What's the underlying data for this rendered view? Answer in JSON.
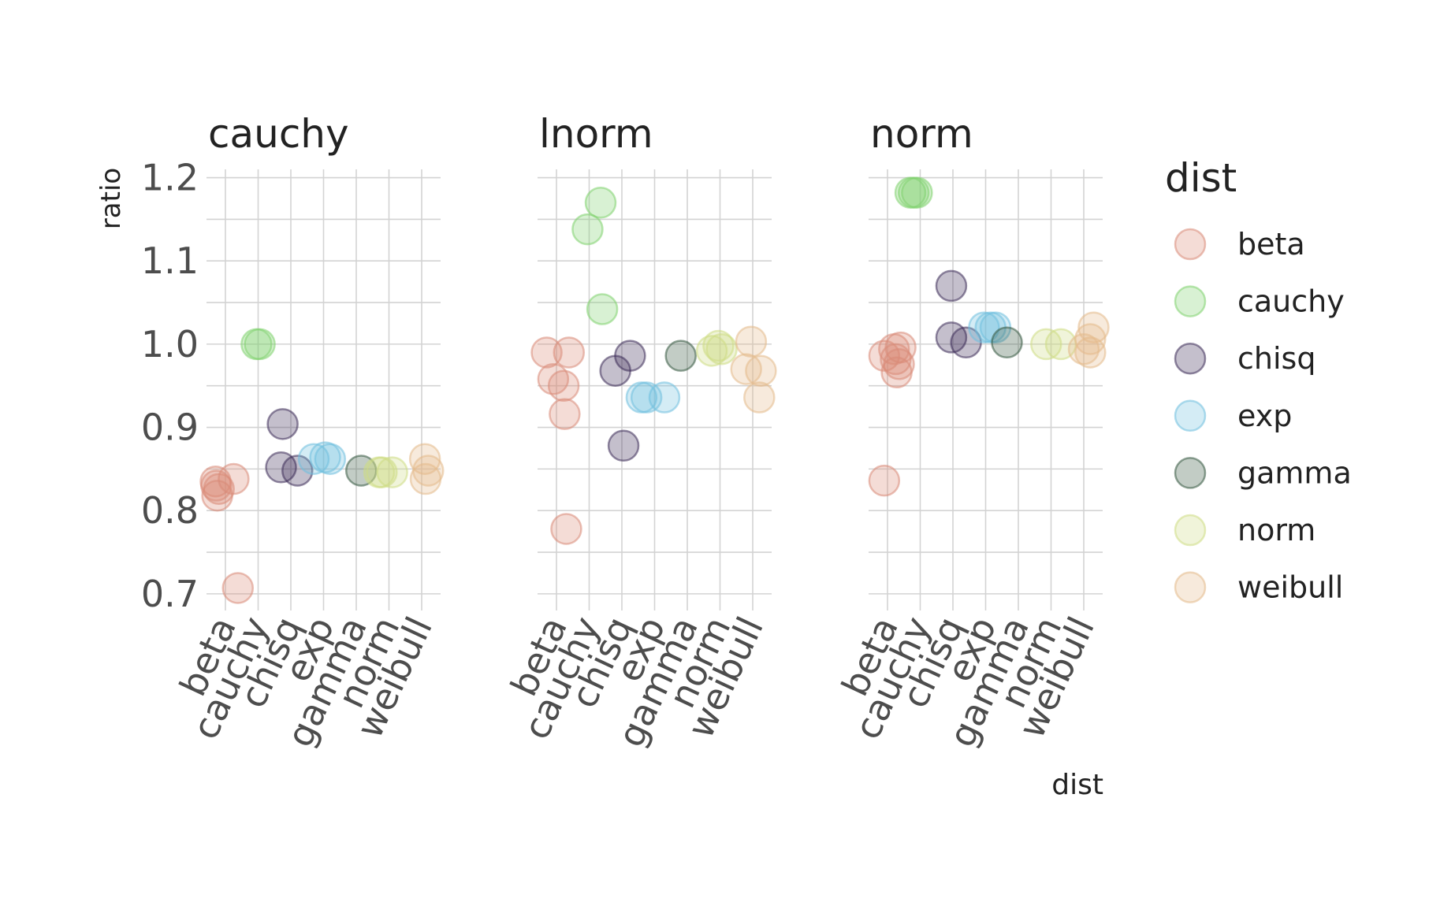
{
  "chart_data": {
    "type": "scatter",
    "ylabel": "ratio",
    "xlabel": "dist",
    "ylim": [
      0.68,
      1.21
    ],
    "y_ticks": [
      "1.2",
      "1.1",
      "1.0",
      "0.9",
      "0.8",
      "0.7"
    ],
    "y_tick_values": [
      1.2,
      1.1,
      1.0,
      0.9,
      0.8,
      0.7
    ],
    "categories": [
      "beta",
      "cauchy",
      "chisq",
      "exp",
      "gamma",
      "norm",
      "weibull"
    ],
    "grid": true,
    "legend": {
      "title": "dist",
      "placement": "right",
      "entries": [
        "beta",
        "cauchy",
        "chisq",
        "exp",
        "gamma",
        "norm",
        "weibull"
      ]
    },
    "colors": {
      "beta": "#d98a78",
      "cauchy": "#7fd16e",
      "chisq": "#3d2b57",
      "exp": "#6fc0df",
      "gamma": "#35573f",
      "norm": "#cedc84",
      "weibull": "#e3b98a"
    },
    "panels": [
      {
        "title": "cauchy",
        "points": [
          {
            "dist": "beta",
            "x": -0.3,
            "y": 0.835
          },
          {
            "dist": "beta",
            "x": -0.2,
            "y": 0.826
          },
          {
            "dist": "beta",
            "x": -0.25,
            "y": 0.818
          },
          {
            "dist": "beta",
            "x": -0.28,
            "y": 0.83
          },
          {
            "dist": "beta",
            "x": 0.25,
            "y": 0.838
          },
          {
            "dist": "beta",
            "x": 0.38,
            "y": 0.707
          },
          {
            "dist": "cauchy",
            "x": 0.95,
            "y": 1.0
          },
          {
            "dist": "cauchy",
            "x": 1.05,
            "y": 1.0
          },
          {
            "dist": "chisq",
            "x": 1.75,
            "y": 0.904
          },
          {
            "dist": "chisq",
            "x": 1.7,
            "y": 0.852
          },
          {
            "dist": "chisq",
            "x": 2.2,
            "y": 0.848
          },
          {
            "dist": "exp",
            "x": 2.7,
            "y": 0.862
          },
          {
            "dist": "exp",
            "x": 3.05,
            "y": 0.864
          },
          {
            "dist": "exp",
            "x": 3.2,
            "y": 0.862
          },
          {
            "dist": "gamma",
            "x": 4.15,
            "y": 0.848
          },
          {
            "dist": "norm",
            "x": 4.7,
            "y": 0.846
          },
          {
            "dist": "norm",
            "x": 4.78,
            "y": 0.846
          },
          {
            "dist": "norm",
            "x": 5.1,
            "y": 0.846
          },
          {
            "dist": "weibull",
            "x": 6.1,
            "y": 0.862
          },
          {
            "dist": "weibull",
            "x": 6.2,
            "y": 0.848
          },
          {
            "dist": "weibull",
            "x": 6.12,
            "y": 0.838
          }
        ]
      },
      {
        "title": "lnorm",
        "points": [
          {
            "dist": "beta",
            "x": -0.3,
            "y": 0.99
          },
          {
            "dist": "beta",
            "x": 0.38,
            "y": 0.99
          },
          {
            "dist": "beta",
            "x": -0.1,
            "y": 0.958
          },
          {
            "dist": "beta",
            "x": 0.22,
            "y": 0.95
          },
          {
            "dist": "beta",
            "x": 0.25,
            "y": 0.916
          },
          {
            "dist": "beta",
            "x": 0.3,
            "y": 0.778
          },
          {
            "dist": "cauchy",
            "x": 1.35,
            "y": 1.17
          },
          {
            "dist": "cauchy",
            "x": 0.95,
            "y": 1.138
          },
          {
            "dist": "cauchy",
            "x": 1.4,
            "y": 1.042
          },
          {
            "dist": "chisq",
            "x": 2.25,
            "y": 0.986
          },
          {
            "dist": "chisq",
            "x": 1.8,
            "y": 0.968
          },
          {
            "dist": "chisq",
            "x": 2.05,
            "y": 0.878
          },
          {
            "dist": "exp",
            "x": 2.6,
            "y": 0.936
          },
          {
            "dist": "exp",
            "x": 2.75,
            "y": 0.936
          },
          {
            "dist": "exp",
            "x": 3.3,
            "y": 0.936
          },
          {
            "dist": "gamma",
            "x": 3.8,
            "y": 0.986
          },
          {
            "dist": "norm",
            "x": 4.75,
            "y": 0.992
          },
          {
            "dist": "norm",
            "x": 4.95,
            "y": 0.998
          },
          {
            "dist": "norm",
            "x": 5.05,
            "y": 0.994
          },
          {
            "dist": "weibull",
            "x": 5.95,
            "y": 1.003
          },
          {
            "dist": "weibull",
            "x": 5.8,
            "y": 0.97
          },
          {
            "dist": "weibull",
            "x": 6.25,
            "y": 0.968
          },
          {
            "dist": "weibull",
            "x": 6.2,
            "y": 0.936
          }
        ]
      },
      {
        "title": "norm",
        "points": [
          {
            "dist": "beta",
            "x": -0.1,
            "y": 0.986
          },
          {
            "dist": "beta",
            "x": 0.2,
            "y": 0.994
          },
          {
            "dist": "beta",
            "x": 0.4,
            "y": 0.996
          },
          {
            "dist": "beta",
            "x": 0.25,
            "y": 0.982
          },
          {
            "dist": "beta",
            "x": 0.35,
            "y": 0.976
          },
          {
            "dist": "beta",
            "x": 0.28,
            "y": 0.966
          },
          {
            "dist": "beta",
            "x": -0.1,
            "y": 0.836
          },
          {
            "dist": "cauchy",
            "x": 0.7,
            "y": 1.182
          },
          {
            "dist": "cauchy",
            "x": 0.8,
            "y": 1.182
          },
          {
            "dist": "cauchy",
            "x": 0.9,
            "y": 1.182
          },
          {
            "dist": "chisq",
            "x": 1.95,
            "y": 1.07
          },
          {
            "dist": "chisq",
            "x": 1.95,
            "y": 1.008
          },
          {
            "dist": "chisq",
            "x": 2.4,
            "y": 1.002
          },
          {
            "dist": "exp",
            "x": 2.95,
            "y": 1.02
          },
          {
            "dist": "exp",
            "x": 3.15,
            "y": 1.02
          },
          {
            "dist": "exp",
            "x": 3.3,
            "y": 1.02
          },
          {
            "dist": "gamma",
            "x": 3.65,
            "y": 1.002
          },
          {
            "dist": "norm",
            "x": 4.85,
            "y": 1.0
          },
          {
            "dist": "norm",
            "x": 5.3,
            "y": 1.0
          },
          {
            "dist": "weibull",
            "x": 6.3,
            "y": 1.02
          },
          {
            "dist": "weibull",
            "x": 6.2,
            "y": 1.006
          },
          {
            "dist": "weibull",
            "x": 6.0,
            "y": 0.994
          },
          {
            "dist": "weibull",
            "x": 6.2,
            "y": 0.99
          }
        ]
      }
    ]
  }
}
